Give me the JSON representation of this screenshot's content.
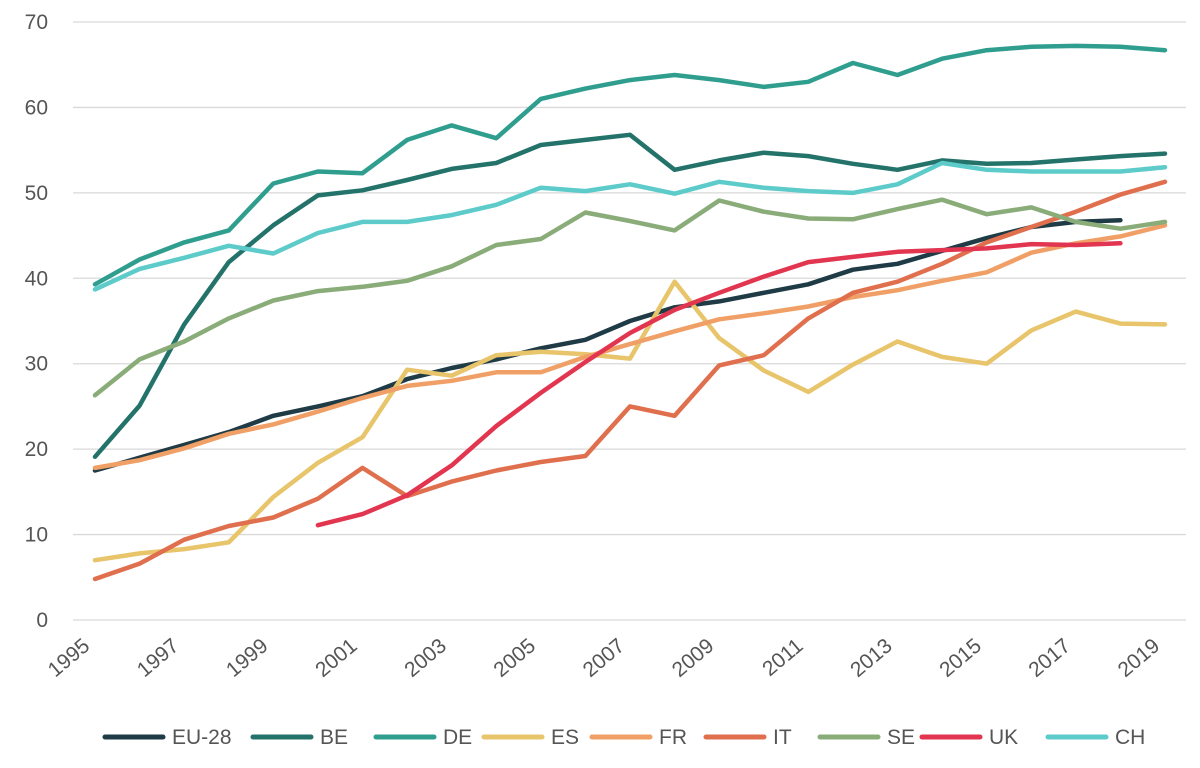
{
  "chart_data": {
    "type": "line",
    "title": "",
    "xlabel": "",
    "ylabel": "",
    "x": [
      1995,
      1996,
      1997,
      1998,
      1999,
      2000,
      2001,
      2002,
      2003,
      2004,
      2005,
      2006,
      2007,
      2008,
      2009,
      2010,
      2011,
      2012,
      2013,
      2014,
      2015,
      2016,
      2017,
      2018,
      2019
    ],
    "x_tick_labels": [
      "1995",
      "1997",
      "1999",
      "2001",
      "2003",
      "2005",
      "2007",
      "2009",
      "2011",
      "2013",
      "2015",
      "2017",
      "2019"
    ],
    "ylim": [
      0,
      70
    ],
    "y_ticks": [
      0,
      10,
      20,
      30,
      40,
      50,
      60,
      70
    ],
    "grid": "horizontal",
    "legend_position": "bottom",
    "series": [
      {
        "name": "EU-28",
        "color": "#1f3b45",
        "values": [
          17.5,
          19,
          20.5,
          22,
          23.9,
          25,
          26.2,
          28.2,
          29.5,
          30.5,
          31.8,
          32.8,
          35,
          36.6,
          37.3,
          38.3,
          39.3,
          41,
          41.7,
          43.2,
          44.7,
          46,
          46.6,
          46.8,
          null
        ]
      },
      {
        "name": "BE",
        "color": "#24736a",
        "values": [
          19.1,
          25.1,
          34.6,
          41.9,
          46.2,
          49.7,
          50.3,
          51.5,
          52.8,
          53.5,
          55.6,
          56.2,
          56.8,
          52.7,
          53.8,
          54.7,
          54.3,
          53.4,
          52.7,
          53.8,
          53.4,
          53.5,
          53.9,
          54.3,
          54.6
        ]
      },
      {
        "name": "DE",
        "color": "#2f9e8e",
        "values": [
          39.3,
          42.2,
          44.2,
          45.6,
          51.1,
          52.5,
          52.3,
          56.2,
          57.9,
          56.4,
          61,
          62.2,
          63.2,
          63.8,
          63.2,
          62.4,
          63,
          65.2,
          63.8,
          65.7,
          66.7,
          67.1,
          67.2,
          67.1,
          66.7
        ]
      },
      {
        "name": "ES",
        "color": "#e8c46b",
        "values": [
          7,
          7.8,
          8.3,
          9.1,
          14.4,
          18.4,
          21.4,
          29.3,
          28.6,
          31,
          31.4,
          31.1,
          30.6,
          39.6,
          33,
          29.2,
          26.7,
          29.9,
          32.6,
          30.8,
          30,
          33.9,
          36.1,
          34.7,
          34.6
        ]
      },
      {
        "name": "FR",
        "color": "#f0a066",
        "values": [
          17.8,
          18.7,
          20.1,
          21.8,
          22.9,
          24.4,
          26,
          27.4,
          28,
          29,
          29,
          30.8,
          32.3,
          33.8,
          35.2,
          35.9,
          36.7,
          37.8,
          38.6,
          39.7,
          40.7,
          43,
          44.1,
          44.9,
          46.2
        ]
      },
      {
        "name": "IT",
        "color": "#e06f4e",
        "values": [
          4.8,
          6.6,
          9.4,
          11,
          12,
          14.2,
          17.8,
          14.5,
          16.2,
          17.5,
          18.5,
          19.2,
          25,
          23.9,
          29.8,
          31,
          35.3,
          38.3,
          39.6,
          41.7,
          44.2,
          46,
          47.8,
          49.8,
          51.3
        ]
      },
      {
        "name": "SE",
        "color": "#89ac79",
        "values": [
          26.3,
          30.5,
          32.6,
          35.3,
          37.4,
          38.5,
          39,
          39.7,
          41.4,
          43.9,
          44.6,
          47.7,
          46.7,
          45.6,
          49.1,
          47.8,
          47,
          46.9,
          48.1,
          49.2,
          47.5,
          48.3,
          46.6,
          45.8,
          46.6
        ]
      },
      {
        "name": "UK",
        "color": "#e2354f",
        "values": [
          null,
          null,
          null,
          null,
          null,
          11.1,
          12.4,
          14.6,
          18.1,
          22.7,
          26.6,
          30.2,
          33.6,
          36.3,
          38.3,
          40.2,
          41.9,
          42.5,
          43.1,
          43.3,
          43.5,
          44,
          43.9,
          44.1,
          null
        ]
      },
      {
        "name": "CH",
        "color": "#5ccbc9",
        "values": [
          38.7,
          41.1,
          42.4,
          43.8,
          42.9,
          45.3,
          46.6,
          46.6,
          47.4,
          48.6,
          50.6,
          50.2,
          51,
          49.9,
          51.3,
          50.6,
          50.2,
          50,
          51,
          53.5,
          52.7,
          52.5,
          52.5,
          52.5,
          53
        ]
      }
    ]
  }
}
